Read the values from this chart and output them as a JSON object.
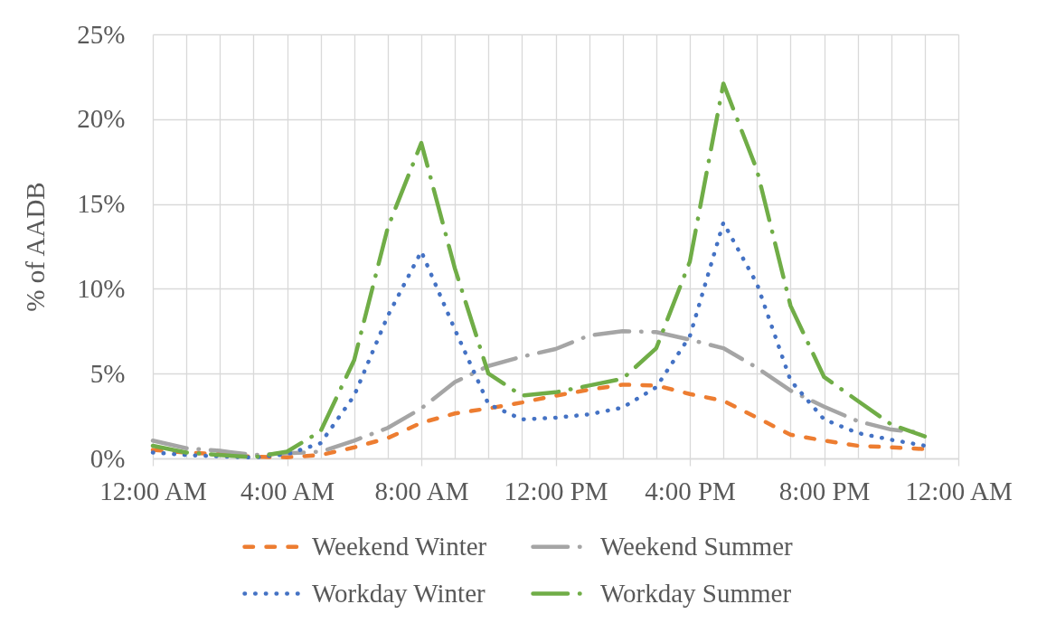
{
  "chart_data": {
    "type": "line",
    "ylabel": "% of AADB",
    "x": [
      0,
      1,
      2,
      3,
      4,
      5,
      6,
      7,
      8,
      9,
      10,
      11,
      12,
      13,
      14,
      15,
      16,
      17,
      18,
      19,
      20,
      21,
      22,
      23
    ],
    "xlim": [
      0,
      24
    ],
    "xticks": [
      {
        "value": 0,
        "label": "12:00 AM"
      },
      {
        "value": 1,
        "label": null
      },
      {
        "value": 2,
        "label": null
      },
      {
        "value": 3,
        "label": null
      },
      {
        "value": 4,
        "label": "4:00 AM"
      },
      {
        "value": 5,
        "label": null
      },
      {
        "value": 6,
        "label": null
      },
      {
        "value": 7,
        "label": null
      },
      {
        "value": 8,
        "label": "8:00 AM"
      },
      {
        "value": 9,
        "label": null
      },
      {
        "value": 10,
        "label": null
      },
      {
        "value": 11,
        "label": null
      },
      {
        "value": 12,
        "label": "12:00 PM"
      },
      {
        "value": 13,
        "label": null
      },
      {
        "value": 14,
        "label": null
      },
      {
        "value": 15,
        "label": null
      },
      {
        "value": 16,
        "label": "4:00 PM"
      },
      {
        "value": 17,
        "label": null
      },
      {
        "value": 18,
        "label": null
      },
      {
        "value": 19,
        "label": null
      },
      {
        "value": 20,
        "label": "8:00 PM"
      },
      {
        "value": 21,
        "label": null
      },
      {
        "value": 22,
        "label": null
      },
      {
        "value": 23,
        "label": null
      },
      {
        "value": 24,
        "label": "12:00 AM"
      }
    ],
    "ylim": [
      0,
      25
    ],
    "yticks": [
      {
        "value": 0,
        "label": "0%"
      },
      {
        "value": 5,
        "label": "5%"
      },
      {
        "value": 10,
        "label": "10%"
      },
      {
        "value": 15,
        "label": "15%"
      },
      {
        "value": 20,
        "label": "20%"
      },
      {
        "value": 25,
        "label": "25%"
      }
    ],
    "grid": true,
    "legend": "bottom",
    "series": [
      {
        "name": "Weekend Winter",
        "color": "#ed7d31",
        "line_style": "dashed",
        "values": [
          0.5,
          0.35,
          0.25,
          0.1,
          0.07,
          0.2,
          0.65,
          1.2,
          2.1,
          2.65,
          2.95,
          3.3,
          3.7,
          4.05,
          4.35,
          4.3,
          3.8,
          3.4,
          2.4,
          1.4,
          1.05,
          0.75,
          0.65,
          0.55
        ]
      },
      {
        "name": "Weekend Summer",
        "color": "#a5a5a5",
        "line_style": "dashdot",
        "values": [
          1.05,
          0.6,
          0.45,
          0.2,
          0.3,
          0.4,
          1.05,
          1.8,
          2.95,
          4.5,
          5.45,
          6.0,
          6.45,
          7.25,
          7.5,
          7.45,
          7.0,
          6.5,
          5.35,
          4.0,
          3.05,
          2.2,
          1.7,
          1.5
        ]
      },
      {
        "name": "Workday Winter",
        "color": "#4472c4",
        "line_style": "dotted",
        "values": [
          0.35,
          0.2,
          0.12,
          0.05,
          0.25,
          0.9,
          3.7,
          8.4,
          12.2,
          7.6,
          3.2,
          2.3,
          2.4,
          2.6,
          3.0,
          4.2,
          7.2,
          13.9,
          10.3,
          4.6,
          2.3,
          1.5,
          1.1,
          0.75
        ]
      },
      {
        "name": "Workday Summer",
        "color": "#70ad47",
        "line_style": "dashdot",
        "values": [
          0.75,
          0.35,
          0.2,
          0.07,
          0.4,
          1.6,
          5.8,
          13.6,
          18.6,
          11.2,
          5.0,
          3.7,
          3.9,
          4.3,
          4.7,
          6.5,
          11.6,
          22.1,
          17.0,
          9.0,
          4.8,
          3.4,
          2.0,
          1.3
        ]
      }
    ]
  }
}
